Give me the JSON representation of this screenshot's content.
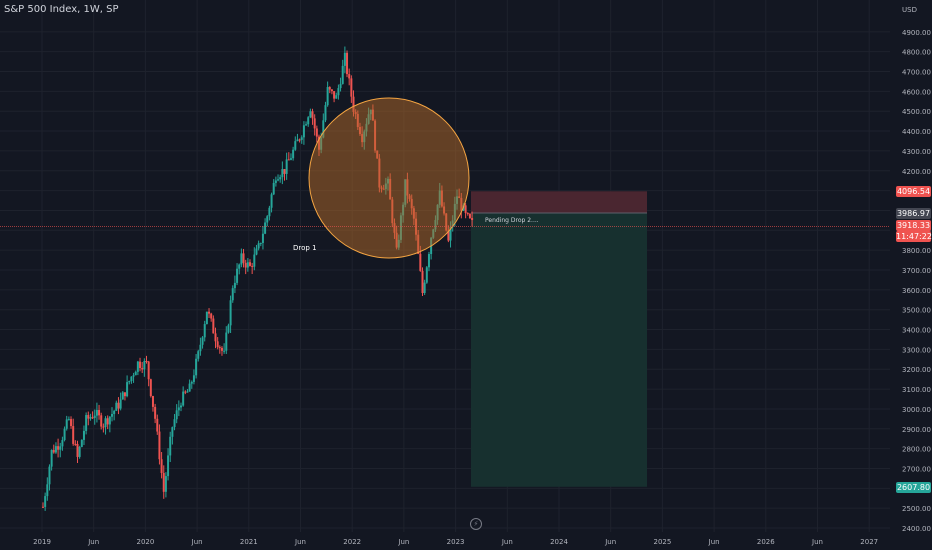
{
  "header": {
    "title": "S&P 500 Index, 1W, SP"
  },
  "annotations": {
    "drop1": "Drop 1",
    "pending": "Pending Drop 2...."
  },
  "price_badges": {
    "stop": "4096.54",
    "entry": "3986.97",
    "current": "3918.33",
    "countdown": "11:47:22",
    "target": "2607.80"
  },
  "colors": {
    "background": "#131722",
    "up": "#26a69a",
    "down": "#ef5350",
    "stop_zone": "#4a2630",
    "target_zone": "#17302f",
    "circle_fill": "#b46a28",
    "circle_stroke": "#f5a542",
    "grid": "#1e222d"
  },
  "chart_data": {
    "type": "candlestick",
    "title": "S&P 500 Index, 1W, SP",
    "ylabel": "USD",
    "ylim": [
      2380,
      5020
    ],
    "y_ticks": [
      2400,
      2500,
      2600,
      2700,
      2800,
      2900,
      3000,
      3100,
      3200,
      3300,
      3400,
      3500,
      3600,
      3700,
      3800,
      3900,
      4000,
      4100,
      4200,
      4300,
      4400,
      4500,
      4600,
      4700,
      4800,
      4900
    ],
    "x_ticks": [
      "2019",
      "Jun",
      "2020",
      "Jun",
      "2021",
      "Jun",
      "2022",
      "Jun",
      "2023",
      "Jun",
      "2024",
      "Jun",
      "2025",
      "Jun",
      "2026",
      "Jun",
      "2027"
    ],
    "grid": true,
    "series": [
      {
        "name": "S&P 500 Index",
        "points": [
          [
            "2019-01",
            2507
          ],
          [
            "2019-02",
            2784
          ],
          [
            "2019-03",
            2834
          ],
          [
            "2019-04",
            2946
          ],
          [
            "2019-05",
            2752
          ],
          [
            "2019-06",
            2942
          ],
          [
            "2019-07",
            2980
          ],
          [
            "2019-08",
            2926
          ],
          [
            "2019-09",
            2977
          ],
          [
            "2019-10",
            3038
          ],
          [
            "2019-11",
            3141
          ],
          [
            "2019-12",
            3231
          ],
          [
            "2020-01",
            3226
          ],
          [
            "2020-02",
            2954
          ],
          [
            "2020-03",
            2585
          ],
          [
            "2020-04",
            2912
          ],
          [
            "2020-05",
            3044
          ],
          [
            "2020-06",
            3100
          ],
          [
            "2020-07",
            3271
          ],
          [
            "2020-08",
            3500
          ],
          [
            "2020-09",
            3363
          ],
          [
            "2020-10",
            3270
          ],
          [
            "2020-11",
            3622
          ],
          [
            "2020-12",
            3756
          ],
          [
            "2021-01",
            3714
          ],
          [
            "2021-02",
            3811
          ],
          [
            "2021-03",
            3973
          ],
          [
            "2021-04",
            4181
          ],
          [
            "2021-05",
            4204
          ],
          [
            "2021-06",
            4298
          ],
          [
            "2021-07",
            4395
          ],
          [
            "2021-08",
            4523
          ],
          [
            "2021-09",
            4308
          ],
          [
            "2021-10",
            4605
          ],
          [
            "2021-11",
            4567
          ],
          [
            "2021-12",
            4766
          ],
          [
            "2022-01",
            4516
          ],
          [
            "2022-02",
            4374
          ],
          [
            "2022-03",
            4530
          ],
          [
            "2022-04",
            4132
          ],
          [
            "2022-05",
            4132
          ],
          [
            "2022-06",
            3785
          ],
          [
            "2022-07",
            4130
          ],
          [
            "2022-08",
            3955
          ],
          [
            "2022-09",
            3586
          ],
          [
            "2022-10",
            3872
          ],
          [
            "2022-11",
            4080
          ],
          [
            "2022-12",
            3840
          ],
          [
            "2023-01",
            4077
          ],
          [
            "2023-02",
            3970
          ],
          [
            "2023-03",
            3918
          ]
        ]
      }
    ],
    "annotations": [
      {
        "text": "Drop 1",
        "x": "2021-05",
        "y": 3810
      },
      {
        "text": "Pending Drop 2....",
        "x": "2023-04",
        "y": 3960
      }
    ],
    "short_position": {
      "entry": 3986.97,
      "stop": 4096.54,
      "target": 2607.8,
      "start": "2023-03",
      "end": "2024-12"
    },
    "current_price": 3918.33,
    "highlight_circle": {
      "center_x": "2022-06",
      "center_y": 4180
    }
  }
}
